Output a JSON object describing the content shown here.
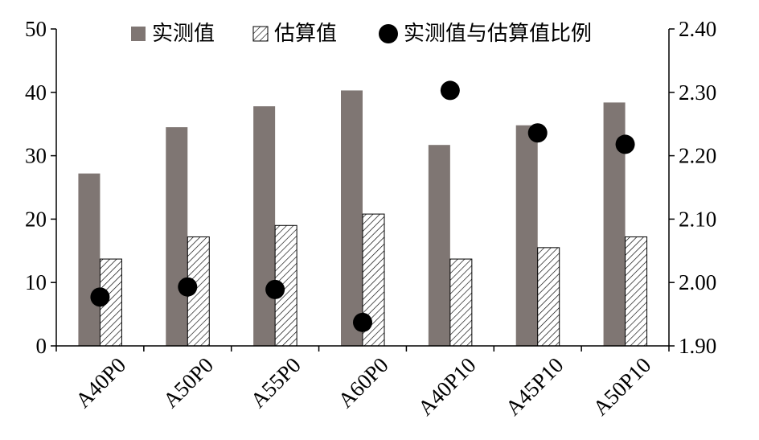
{
  "chart_data": {
    "type": "bar",
    "categories": [
      "A40P0",
      "A50P0",
      "A55P0",
      "A60P0",
      "A40P10",
      "A45P10",
      "A50P10"
    ],
    "series": [
      {
        "name": "实测值",
        "axis": "left",
        "kind": "bar",
        "pattern": "solid",
        "color": "#7f7673",
        "values": [
          27.2,
          34.5,
          37.8,
          40.3,
          31.7,
          34.8,
          38.4
        ]
      },
      {
        "name": "估算值",
        "axis": "left",
        "kind": "bar",
        "pattern": "diagonal-hatch",
        "color": "#ffffff",
        "values": [
          13.7,
          17.2,
          19.0,
          20.8,
          13.7,
          15.5,
          17.2
        ]
      },
      {
        "name": "实测值与估算值比例",
        "axis": "right",
        "kind": "scatter",
        "marker": "circle",
        "color": "#000000",
        "values": [
          1.977,
          1.993,
          1.989,
          1.937,
          2.303,
          2.236,
          2.218
        ]
      }
    ],
    "y_left": {
      "min": 0,
      "max": 50,
      "ticks": [
        "0",
        "10",
        "20",
        "30",
        "40",
        "50"
      ]
    },
    "y_right": {
      "min": 1.9,
      "max": 2.4,
      "ticks": [
        "1.90",
        "2.00",
        "2.10",
        "2.20",
        "2.30",
        "2.40"
      ]
    },
    "grid": false,
    "legend_position": "top"
  }
}
